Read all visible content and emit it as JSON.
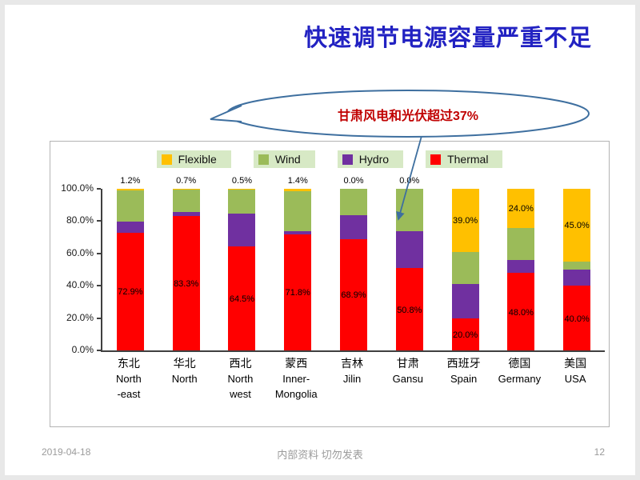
{
  "slide": {
    "title": "快速调节电源容量严重不足",
    "callout": {
      "text": "甘肃风电和光伏超过37%"
    },
    "footer": {
      "date": "2019-04-18",
      "center": "内部资料 切勿发表",
      "page": "12"
    }
  },
  "chart_data": {
    "type": "bar",
    "stacked": true,
    "ylim": [
      0,
      100
    ],
    "grid": false,
    "legend_position": "top",
    "y_ticks": [
      "100.0%",
      "80.0%",
      "60.0%",
      "40.0%",
      "20.0%",
      "0.0%"
    ],
    "legend": [
      {
        "name": "Flexible",
        "color": "#FFC000"
      },
      {
        "name": "Wind",
        "color": "#9BBB59"
      },
      {
        "name": "Hydro",
        "color": "#7030A0"
      },
      {
        "name": "Thermal",
        "color": "#FF0000"
      }
    ],
    "categories": [
      {
        "zh": "东北",
        "en": [
          "North",
          "-east"
        ]
      },
      {
        "zh": "华北",
        "en": [
          "North"
        ]
      },
      {
        "zh": "西北",
        "en": [
          "North",
          "west"
        ]
      },
      {
        "zh": "蒙西",
        "en": [
          "Inner-",
          "Mongolia"
        ]
      },
      {
        "zh": "吉林",
        "en": [
          "Jilin"
        ]
      },
      {
        "zh": "甘肃",
        "en": [
          "Gansu"
        ]
      },
      {
        "zh": "西班牙",
        "en": [
          "Spain"
        ]
      },
      {
        "zh": "德国",
        "en": [
          "Germany"
        ]
      },
      {
        "zh": "美国",
        "en": [
          "USA"
        ]
      }
    ],
    "series_order_bottom_to_top": [
      "Thermal",
      "Hydro",
      "Wind",
      "Flexible"
    ],
    "series": [
      {
        "name": "Thermal",
        "color": "#FF0000",
        "values": [
          72.9,
          83.3,
          64.5,
          71.8,
          68.9,
          50.8,
          20.0,
          48.0,
          40.0
        ],
        "labels": [
          "72.9%",
          "83.3%",
          "64.5%",
          "71.8%",
          "68.9%",
          "50.8%",
          "20.0%",
          "48.0%",
          "40.0%"
        ],
        "label_position": [
          "inside",
          "inside",
          "inside",
          "inside",
          "inside",
          "inside",
          "inside",
          "inside",
          "inside"
        ]
      },
      {
        "name": "Hydro",
        "color": "#7030A0",
        "values": [
          7.0,
          2.5,
          20.0,
          2.0,
          15.0,
          23.2,
          21.0,
          8.0,
          10.0
        ]
      },
      {
        "name": "Wind",
        "color": "#9BBB59",
        "values": [
          18.9,
          13.5,
          15.0,
          24.8,
          16.1,
          26.0,
          20.0,
          20.0,
          5.0
        ]
      },
      {
        "name": "Flexible",
        "color": "#FFC000",
        "values": [
          1.2,
          0.7,
          0.5,
          1.4,
          0.0,
          0.0,
          39.0,
          24.0,
          45.0
        ],
        "labels": [
          "1.2%",
          "0.7%",
          "0.5%",
          "1.4%",
          "0.0%",
          "0.0%",
          "39.0%",
          "24.0%",
          "45.0%"
        ],
        "label_position": [
          "above",
          "above",
          "above",
          "above",
          "above",
          "above",
          "inside",
          "inside",
          "inside"
        ]
      }
    ]
  }
}
